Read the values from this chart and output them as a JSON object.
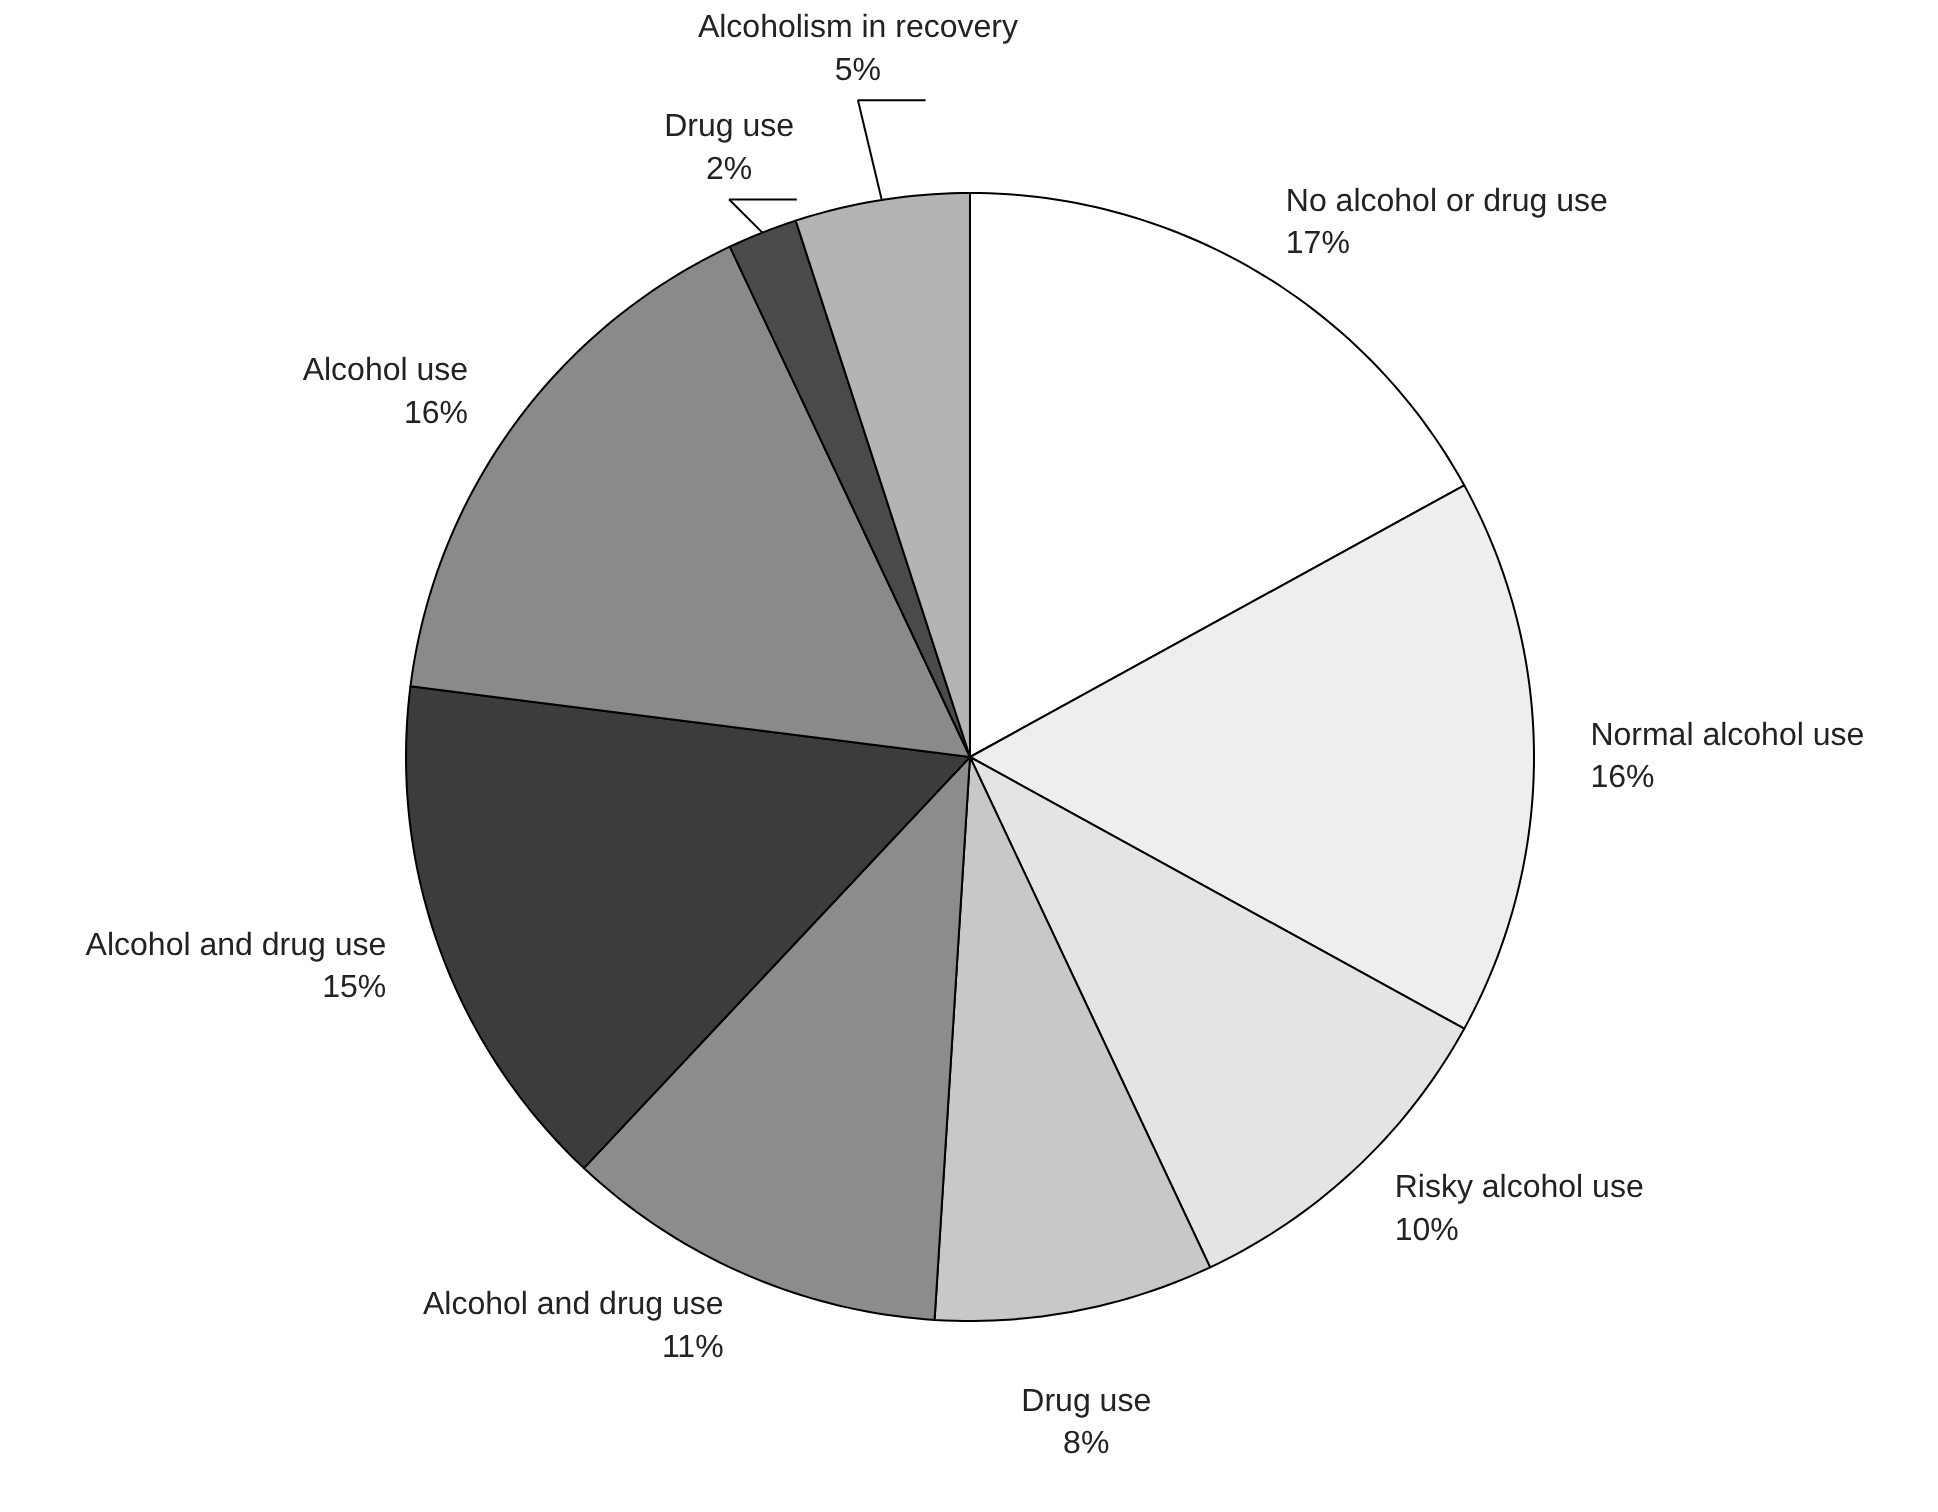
{
  "chart_data": {
    "type": "pie",
    "categories": [
      "No alcohol or drug use",
      "Normal alcohol use",
      "Risky alcohol use",
      "Drug use",
      "Alcohol and drug use",
      "Alcohol and drug use",
      "Alcohol use",
      "Drug use",
      "Alcoholism in recovery"
    ],
    "values": [
      17,
      16,
      10,
      8,
      11,
      15,
      16,
      2,
      5
    ],
    "value_labels": [
      "17%",
      "16%",
      "10%",
      "8%",
      "11%",
      "15%",
      "16%",
      "2%",
      "5%"
    ],
    "colors": [
      "#ffffff",
      "#eeeeee",
      "#e4e4e4",
      "#c8c8c8",
      "#8c8c8c",
      "#3c3c3c",
      "#8a8a8a",
      "#4a4a4a",
      "#b4b4b4"
    ]
  }
}
